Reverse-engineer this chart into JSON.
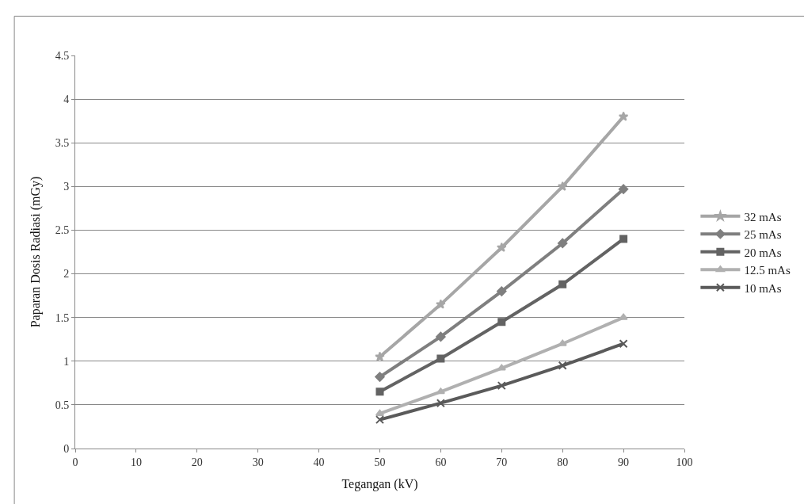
{
  "chart_data": {
    "type": "line",
    "xlabel": "Tegangan (kV)",
    "ylabel": "Paparan Dosis Radiasi (mGy)",
    "x": [
      50,
      60,
      70,
      80,
      90
    ],
    "series": [
      {
        "name": "32 mAs",
        "color": "#a6a6a6",
        "marker": "star",
        "values": [
          1.05,
          1.65,
          2.3,
          3.0,
          3.8
        ]
      },
      {
        "name": "25 mAs",
        "color": "#7f7f7f",
        "marker": "diamond",
        "values": [
          0.82,
          1.28,
          1.8,
          2.35,
          2.97
        ]
      },
      {
        "name": "20 mAs",
        "color": "#636363",
        "marker": "square",
        "values": [
          0.65,
          1.03,
          1.45,
          1.88,
          2.4
        ]
      },
      {
        "name": "12.5 mAs",
        "color": "#b0b0b0",
        "marker": "triangle",
        "values": [
          0.4,
          0.65,
          0.92,
          1.2,
          1.5
        ]
      },
      {
        "name": "10 mAs",
        "color": "#5a5a5a",
        "marker": "cross",
        "values": [
          0.33,
          0.52,
          0.72,
          0.95,
          1.2
        ]
      }
    ],
    "xlim": [
      0,
      100
    ],
    "xticks": [
      0,
      10,
      20,
      30,
      40,
      50,
      60,
      70,
      80,
      90,
      100
    ],
    "ylim": [
      0,
      4.5
    ],
    "yticks": [
      0,
      0.5,
      1,
      1.5,
      2,
      2.5,
      3,
      3.5,
      4,
      4.5
    ],
    "grid": "y",
    "legend": "right",
    "line_style": "solid"
  }
}
